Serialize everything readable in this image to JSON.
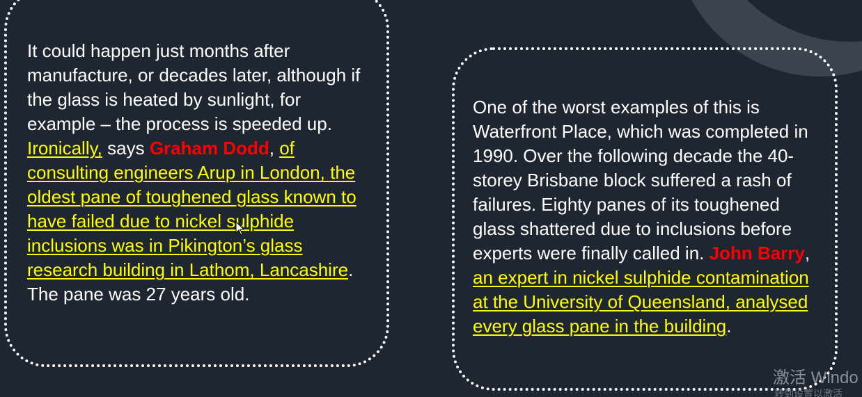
{
  "left_bubble": {
    "seg1": "It could happen just months after manufacture, or decades later, although if the glass is heated by sunlight, for example – the process is speeded up. ",
    "seg2": "Ironically,",
    "seg3": " says ",
    "name": "Graham Dodd",
    "seg4": ", ",
    "seg5": "of consulting engineers Arup in London, the oldest pane of toughened glass known to have failed due to nickel sulphide inclusions was in Pikington’s glass research building in Lathom, Lancashire",
    "seg6": ". The pane was 27 years old."
  },
  "right_bubble": {
    "seg1": "One of the worst examples of this is Waterfront Place, which was completed in 1990. Over the following decade the 40-storey Brisbane block suffered a rash of failures. Eighty panes of its toughened glass shattered due to inclusions before experts were finally called in. ",
    "name": "John Barry",
    "seg2": ", ",
    "seg3": "an expert in nickel sulphide contamination at the University of Queensland, analysed every glass pane in the building",
    "seg4": "."
  },
  "watermark": {
    "main": "激活 Windo",
    "sub": "转到设置以激活"
  },
  "colors": {
    "background": "#1e2631",
    "highlight": "#ffff00",
    "name": "#ff0000",
    "text": "#ffffff"
  }
}
